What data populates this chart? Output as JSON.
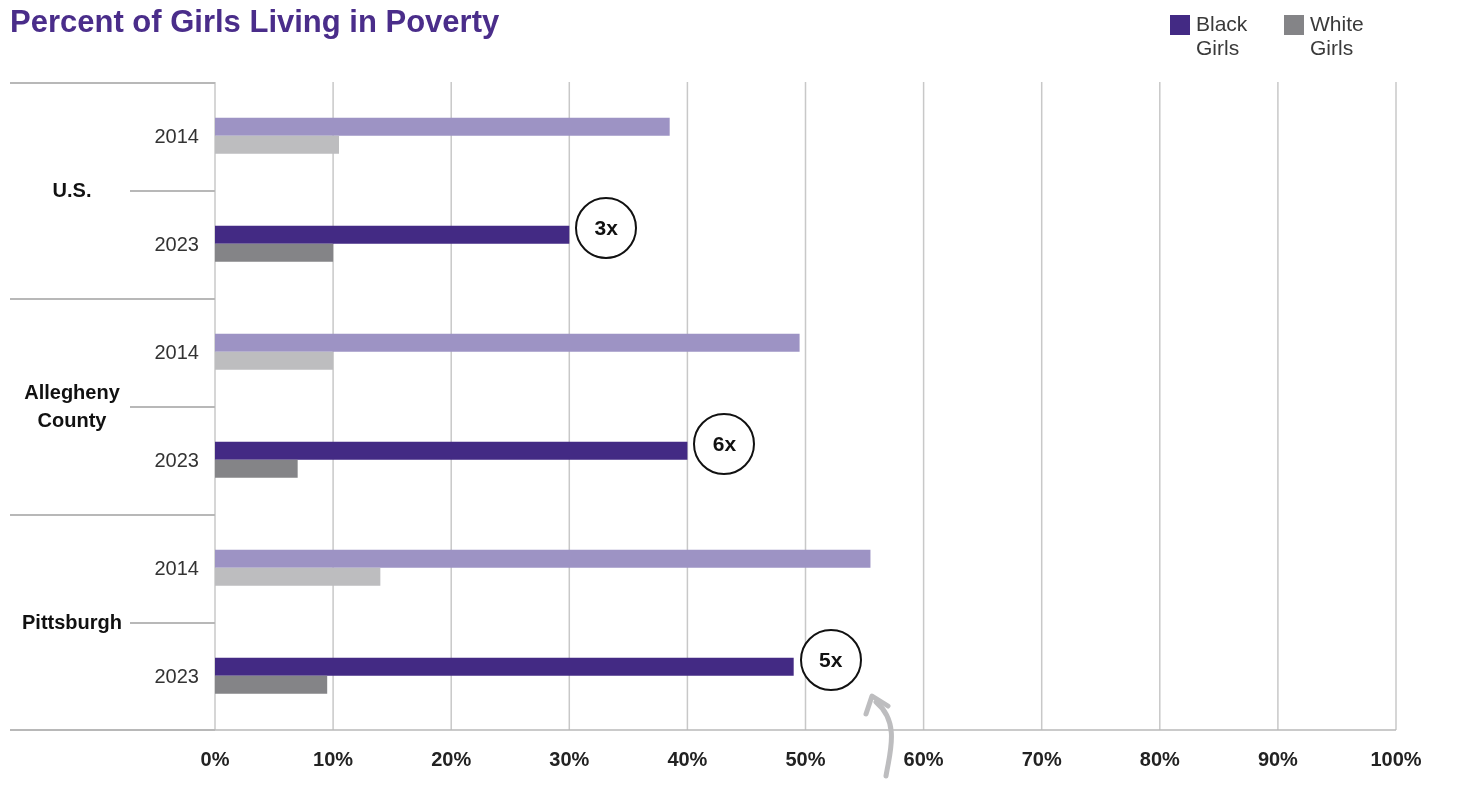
{
  "chart_data": {
    "type": "bar",
    "orientation": "horizontal",
    "title": "Percent of Girls Living in Poverty",
    "categories": [
      "2014",
      "2023",
      "2014",
      "2023",
      "2014",
      "2023"
    ],
    "series": [
      {
        "name": "Black Girls",
        "color": "#432a84",
        "colors": [
          "#9d93c4",
          "#432a84",
          "#9d93c4",
          "#432a84",
          "#9d93c4",
          "#432a84"
        ],
        "values": [
          38.5,
          30,
          49.5,
          40,
          55.5,
          49
        ]
      },
      {
        "name": "White Girls",
        "color": "#848487",
        "colors": [
          "#bdbdbf",
          "#848487",
          "#bdbdbf",
          "#848487",
          "#bdbdbf",
          "#848487"
        ],
        "values": [
          10.5,
          10,
          10,
          7,
          14,
          9.5
        ]
      }
    ],
    "annotations": [
      "U.S.",
      "Allegheny County",
      "Pittsburgh",
      "3x",
      "6x",
      "5x"
    ],
    "xlim": [
      0,
      100
    ],
    "xticks": [
      {
        "value": 0,
        "label": "0%"
      },
      {
        "value": 10,
        "label": "10%"
      },
      {
        "value": 20,
        "label": "20%"
      },
      {
        "value": 30,
        "label": "30%"
      },
      {
        "value": 40,
        "label": "40%"
      },
      {
        "value": 50,
        "label": "50%"
      },
      {
        "value": 60,
        "label": "60%"
      },
      {
        "value": 70,
        "label": "70%"
      },
      {
        "value": 80,
        "label": "80%"
      },
      {
        "value": 90,
        "label": "90%"
      },
      {
        "value": 100,
        "label": "100%"
      }
    ],
    "grid": "x",
    "legend": "top right"
  }
}
